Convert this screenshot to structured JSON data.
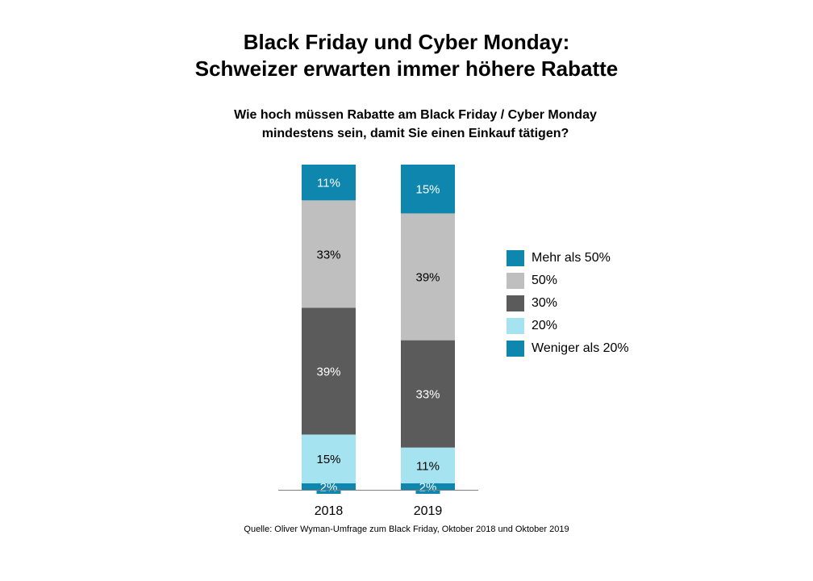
{
  "title_line1": "Black Friday und Cyber Monday:",
  "title_line2": "Schweizer erwarten immer höhere Rabatte",
  "subtitle_line1": "Wie hoch müssen Rabatte am Black Friday / Cyber Monday",
  "subtitle_line2": "mindestens sein, damit Sie einen Einkauf tätigen?",
  "source": "Quelle: Oliver Wyman-Umfrage zum Black Friday, Oktober 2018 und Oktober 2019",
  "chart_data": {
    "type": "bar",
    "stacked": true,
    "categories": [
      "2018",
      "2019"
    ],
    "series": [
      {
        "name": "Weniger als 20%",
        "values": [
          2,
          2
        ],
        "labels": [
          "2%",
          "2%"
        ],
        "color": "#0E86AE",
        "label_color": "#FFFFFF"
      },
      {
        "name": "20%",
        "values": [
          15,
          11
        ],
        "labels": [
          "15%",
          "11%"
        ],
        "color": "#A5E3F0",
        "label_color": "#000000"
      },
      {
        "name": "30%",
        "values": [
          39,
          33
        ],
        "labels": [
          "39%",
          "33%"
        ],
        "color": "#5B5B5B",
        "label_color": "#FFFFFF"
      },
      {
        "name": "50%",
        "values": [
          33,
          39
        ],
        "labels": [
          "33%",
          "39%"
        ],
        "color": "#BFBFBF",
        "label_color": "#000000"
      },
      {
        "name": "Mehr als 50%",
        "values": [
          11,
          15
        ],
        "labels": [
          "11%",
          "15%"
        ],
        "color": "#0E86AE",
        "label_color": "#FFFFFF"
      }
    ],
    "legend_order": [
      "Mehr als 50%",
      "50%",
      "30%",
      "20%",
      "Weniger als 20%"
    ],
    "legend_position": "right",
    "grid": false
  }
}
